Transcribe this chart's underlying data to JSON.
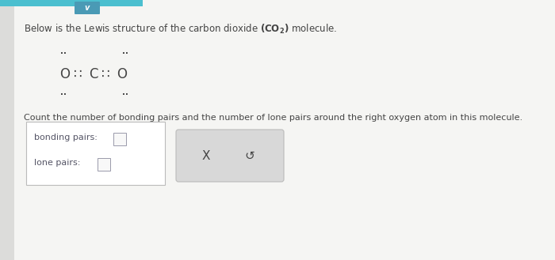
{
  "bg_color": "#e8e8e8",
  "content_bg": "#f2f2f0",
  "top_bar_color": "#4bbfcf",
  "chevron_color": "#4a9ab5",
  "title_text": "Below is the Lewis structure of the carbon dioxide ",
  "co2_formula": "(CO$_2$) molecule.",
  "count_text": "Count the number of bonding pairs and the number of lone pairs around the right oxygen atom in this molecule.",
  "bonding_label": "bonding pairs: ",
  "lone_label": "lone pairs: ",
  "box1_color": "#ffffff",
  "box1_border": "#bbbbbb",
  "box2_color": "#d8d8d8",
  "box2_border": "#bbbbbb",
  "x_symbol": "X",
  "undo_symbol": "↺",
  "text_color": "#444444",
  "label_color": "#555566",
  "font_size_title": 8.5,
  "font_size_lewis": 12,
  "font_size_count": 8.0,
  "font_size_label": 8.0,
  "font_size_dot": 8.0
}
